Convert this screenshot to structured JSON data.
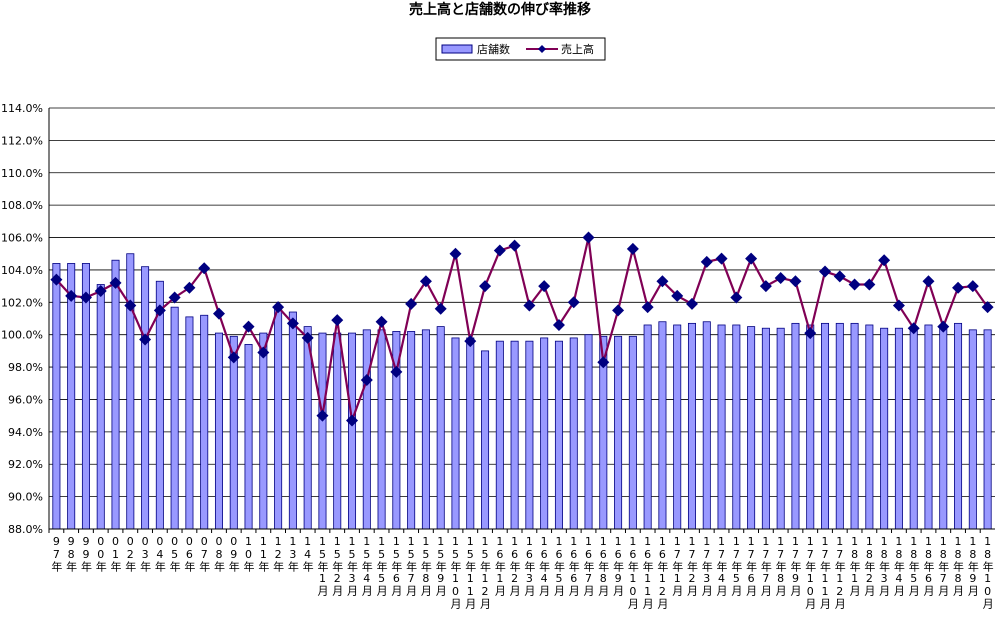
{
  "chart_data": {
    "type": "bar",
    "title": "売上高と店舗数の伸び率推移",
    "categories": [
      "97年",
      "98年",
      "99年",
      "00年",
      "01年",
      "02年",
      "03年",
      "04年",
      "05年",
      "06年",
      "07年",
      "08年",
      "09年",
      "10年",
      "11年",
      "12年",
      "13年",
      "14年",
      "15年1月",
      "15年2月",
      "15年3月",
      "15年4月",
      "15年5月",
      "15年6月",
      "15年7月",
      "15年8月",
      "15年9月",
      "15年10月",
      "15年11月",
      "15年12月",
      "16年1月",
      "16年2月",
      "16年3月",
      "16年4月",
      "16年5月",
      "16年6月",
      "16年7月",
      "16年8月",
      "16年9月",
      "16年10月",
      "16年11月",
      "16年12月",
      "17年1月",
      "17年2月",
      "17年3月",
      "17年4月",
      "17年5月",
      "17年6月",
      "17年7月",
      "17年8月",
      "17年9月",
      "17年10月",
      "17年11月",
      "17年12月",
      "18年1月",
      "18年2月",
      "18年3月",
      "18年4月",
      "18年5月",
      "18年6月",
      "18年7月",
      "18年8月",
      "18年9月",
      "18年10月"
    ],
    "series": [
      {
        "name": "店舗数",
        "type": "bar",
        "color": "#9999ff",
        "values": [
          104.4,
          104.4,
          104.4,
          103.1,
          104.6,
          105.0,
          104.2,
          103.3,
          101.7,
          101.1,
          101.2,
          100.1,
          99.9,
          99.4,
          100.1,
          101.6,
          101.4,
          100.5,
          100.1,
          100.1,
          100.1,
          100.3,
          100.3,
          100.2,
          100.2,
          100.3,
          100.5,
          99.8,
          99.8,
          99.0,
          99.6,
          99.6,
          99.6,
          99.8,
          99.6,
          99.8,
          100.0,
          99.9,
          99.9,
          99.9,
          100.6,
          100.8,
          100.6,
          100.7,
          100.8,
          100.6,
          100.6,
          100.5,
          100.4,
          100.4,
          100.7,
          100.6,
          100.7,
          100.7,
          100.7,
          100.6,
          100.4,
          100.4,
          100.3,
          100.6,
          100.6,
          100.7,
          100.3,
          100.3
        ]
      },
      {
        "name": "売上高",
        "type": "line",
        "color": "#800055",
        "marker_color": "#000080",
        "values": [
          103.4,
          102.4,
          102.3,
          102.7,
          103.2,
          101.8,
          99.7,
          101.5,
          102.3,
          102.9,
          104.1,
          101.3,
          98.6,
          100.5,
          98.9,
          101.7,
          100.7,
          99.8,
          95.0,
          100.9,
          94.7,
          97.2,
          100.8,
          97.7,
          101.9,
          103.3,
          101.6,
          105.0,
          99.6,
          103.0,
          105.2,
          105.5,
          101.8,
          103.0,
          100.6,
          102.0,
          106.0,
          98.3,
          101.5,
          105.3,
          101.7,
          103.3,
          102.4,
          101.9,
          104.5,
          104.7,
          102.3,
          104.7,
          103.0,
          103.5,
          103.3,
          100.1,
          103.9,
          103.6,
          103.1,
          103.1,
          104.6,
          101.8,
          100.4,
          103.3,
          100.5,
          102.9,
          103.0,
          101.7
        ]
      }
    ],
    "ylim": [
      88,
      114
    ],
    "yticks": [
      {
        "value": 88,
        "label": "88.0%"
      },
      {
        "value": 90,
        "label": "90.0%"
      },
      {
        "value": 92,
        "label": "92.0%"
      },
      {
        "value": 94,
        "label": "94.0%"
      },
      {
        "value": 96,
        "label": "96.0%"
      },
      {
        "value": 98,
        "label": "98.0%"
      },
      {
        "value": 100,
        "label": "100.0%"
      },
      {
        "value": 102,
        "label": "102.0%"
      },
      {
        "value": 104,
        "label": "104.0%"
      },
      {
        "value": 106,
        "label": "106.0%"
      },
      {
        "value": 108,
        "label": "108.0%"
      },
      {
        "value": 110,
        "label": "110.0%"
      },
      {
        "value": 112,
        "label": "112.0%"
      },
      {
        "value": 114,
        "label": "114.0%"
      }
    ],
    "grid": true,
    "legend": "top"
  }
}
